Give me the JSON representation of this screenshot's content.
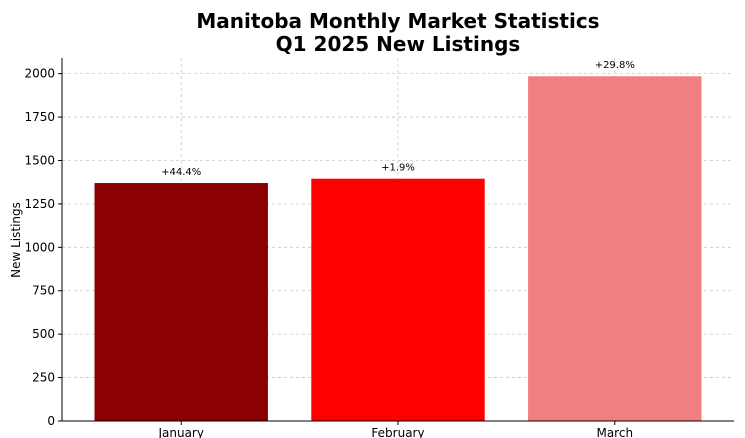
{
  "chart_data": {
    "type": "bar",
    "title_lines": [
      "Manitoba Monthly Market Statistics",
      "Q1 2025 New Listings"
    ],
    "xlabel": "",
    "ylabel": "New Listings",
    "categories": [
      "January",
      "February",
      "March"
    ],
    "values": [
      1370,
      1395,
      1985
    ],
    "data_labels": [
      "+44.4%",
      "+1.9%",
      "+29.8%"
    ],
    "colors": [
      "#8b0000",
      "#ff0000",
      "#f08080"
    ],
    "ylim": [
      0,
      2090
    ],
    "yticks": [
      0,
      250,
      500,
      750,
      1000,
      1250,
      1500,
      1750,
      2000
    ],
    "grid": true,
    "legend": "none"
  }
}
